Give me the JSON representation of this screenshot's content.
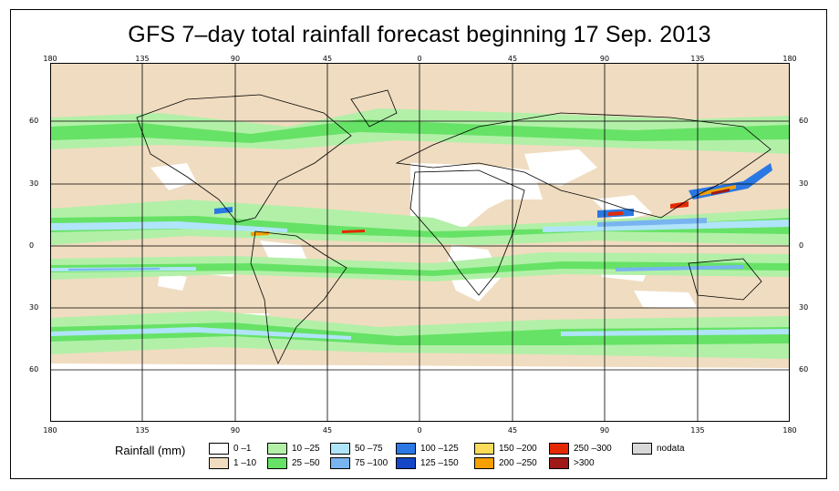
{
  "title": "GFS 7–day total rainfall forecast beginning 17 Sep. 2013",
  "lon_ticks": [
    "180",
    "135",
    "90",
    "45",
    "0",
    "45",
    "90",
    "135",
    "180"
  ],
  "lat_ticks": [
    "60",
    "30",
    "0",
    "30",
    "60"
  ],
  "legend": {
    "title": "Rainfall (mm)",
    "items": [
      {
        "label": "0 –1",
        "color": "#ffffff"
      },
      {
        "label": "1 –10",
        "color": "#f0dcc0"
      },
      {
        "label": "10 –25",
        "color": "#b2f0a8"
      },
      {
        "label": "25 –50",
        "color": "#66e266"
      },
      {
        "label": "50 –75",
        "color": "#b0e4fa"
      },
      {
        "label": "75 –100",
        "color": "#78b4f0"
      },
      {
        "label": "100 –125",
        "color": "#2a78e4"
      },
      {
        "label": "125 –150",
        "color": "#1446c8"
      },
      {
        "label": "150 –200",
        "color": "#f8dc5a"
      },
      {
        "label": "200 –250",
        "color": "#f4a000"
      },
      {
        "label": "250 –300",
        "color": "#e42800"
      },
      {
        "label": ">300",
        "color": "#a01818"
      },
      {
        "label": "nodata",
        "color": "#d8d8d8"
      }
    ]
  }
}
